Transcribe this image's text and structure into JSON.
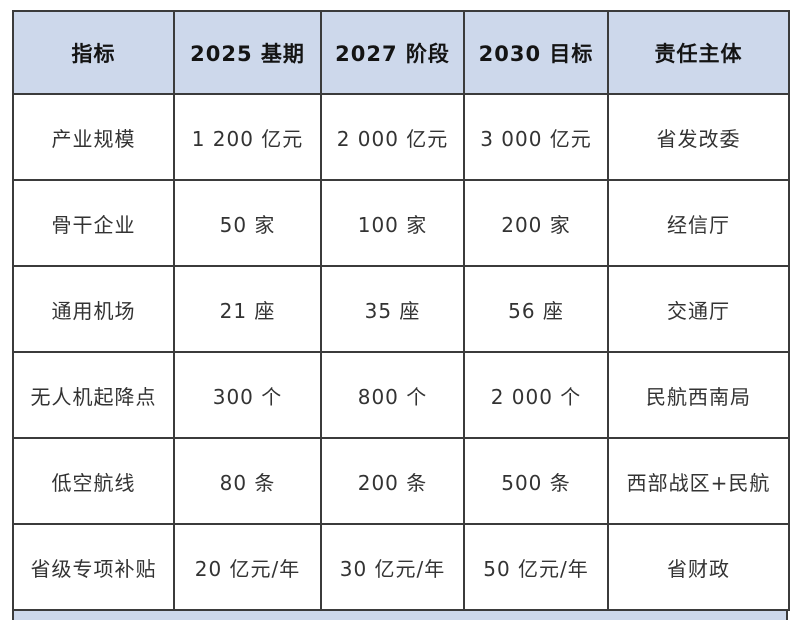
{
  "table": {
    "headers": [
      "指标",
      "2025 基期",
      "2027 阶段",
      "2030 目标",
      "责任主体"
    ],
    "rows": [
      [
        "产业规模",
        "1 200 亿元",
        "2 000 亿元",
        "3 000 亿元",
        "省发改委"
      ],
      [
        "骨干企业",
        "50 家",
        "100 家",
        "200 家",
        "经信厅"
      ],
      [
        "通用机场",
        "21 座",
        "35 座",
        "56 座",
        "交通厅"
      ],
      [
        "无人机起降点",
        "300 个",
        "800 个",
        "2 000 个",
        "民航西南局"
      ],
      [
        "低空航线",
        "80 条",
        "200 条",
        "500 条",
        "西部战区+民航"
      ],
      [
        "省级专项补贴",
        "20 亿元/年",
        "30 亿元/年",
        "50 亿元/年",
        "省财政"
      ]
    ]
  },
  "colors": {
    "header_bg": "#cdd8eb",
    "border": "#3b3b3b",
    "header_text": "#141414",
    "body_text": "#333333",
    "page_bg": "#ffffff"
  }
}
